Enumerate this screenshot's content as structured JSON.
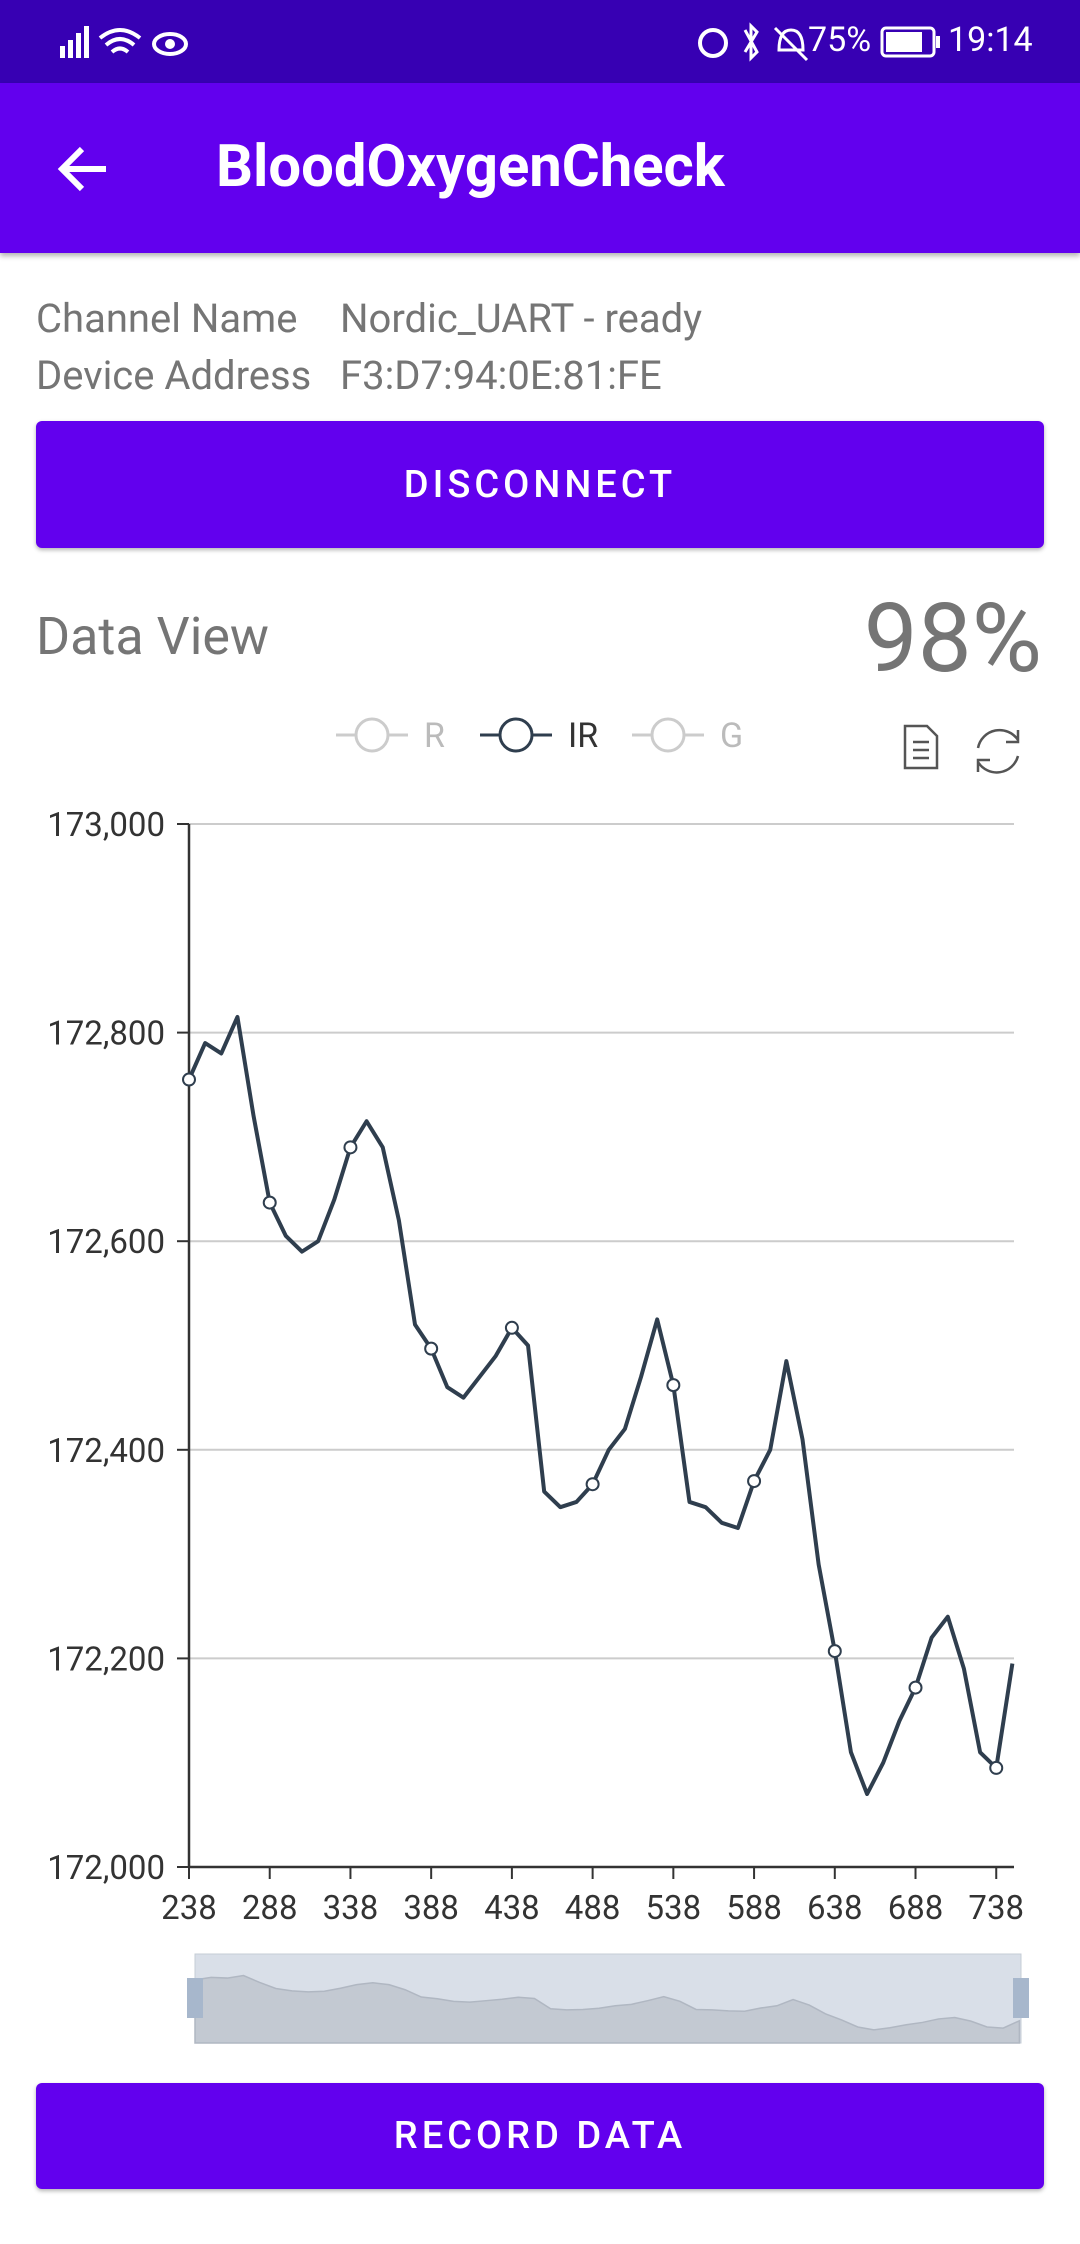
{
  "status_bar": {
    "battery": "75%",
    "time": "19:14"
  },
  "app_bar": {
    "title": "BloodOxygenCheck"
  },
  "info": [
    {
      "label": "Channel Name",
      "value": "Nordic_UART - ready"
    },
    {
      "label": "Device Address",
      "value": "F3:D7:94:0E:81:FE"
    }
  ],
  "disconnect_button": "DISCONNECT",
  "data_view": {
    "title": "Data View",
    "reading": "98%"
  },
  "record_button": "RECORD DATA",
  "chart_data": {
    "type": "line",
    "x": [
      238,
      248,
      258,
      268,
      278,
      288,
      298,
      308,
      318,
      328,
      338,
      348,
      358,
      368,
      378,
      388,
      398,
      408,
      418,
      428,
      438,
      448,
      458,
      468,
      478,
      488,
      498,
      508,
      518,
      528,
      538,
      548,
      558,
      568,
      578,
      588,
      598,
      608,
      618,
      628,
      638,
      648,
      658,
      668,
      678,
      688,
      698,
      708,
      718,
      728,
      738,
      748
    ],
    "series": [
      {
        "name": "R",
        "color": "#cccccc",
        "visible": false
      },
      {
        "name": "IR",
        "color": "#2f3e4e",
        "visible": true,
        "values": [
          172755,
          172790,
          172780,
          172815,
          172720,
          172637,
          172605,
          172590,
          172600,
          172640,
          172690,
          172715,
          172690,
          172620,
          172520,
          172497,
          172460,
          172450,
          172470,
          172490,
          172517,
          172500,
          172360,
          172345,
          172350,
          172367,
          172400,
          172420,
          172470,
          172525,
          172462,
          172350,
          172345,
          172330,
          172325,
          172370,
          172400,
          172485,
          172410,
          172290,
          172207,
          172110,
          172070,
          172100,
          172140,
          172172,
          172220,
          172240,
          172190,
          172110,
          172095,
          172195
        ]
      },
      {
        "name": "G",
        "color": "#cccccc",
        "visible": false
      }
    ],
    "xlim": [
      238,
      749
    ],
    "xticks": [
      238,
      288,
      338,
      388,
      438,
      488,
      538,
      588,
      638,
      688,
      738
    ],
    "ylim": [
      172000,
      173000
    ],
    "yticks": [
      {
        "value": 172000,
        "label": "172,000"
      },
      {
        "value": 172200,
        "label": "172,200"
      },
      {
        "value": 172400,
        "label": "172,400"
      },
      {
        "value": 172600,
        "label": "172,600"
      },
      {
        "value": 172800,
        "label": "172,800"
      },
      {
        "value": 173000,
        "label": "173,000"
      }
    ],
    "grid": true
  }
}
